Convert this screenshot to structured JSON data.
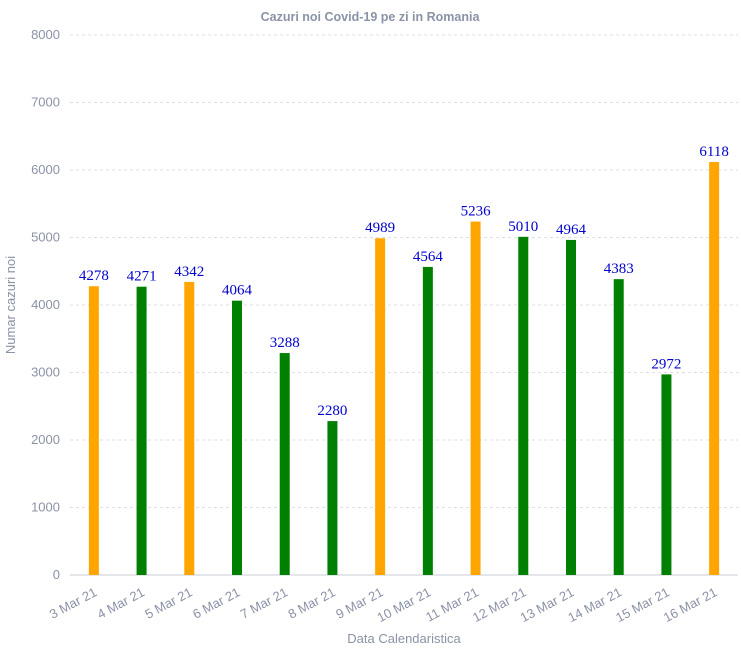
{
  "chart_data": {
    "type": "bar",
    "title": "Cazuri noi Covid-19 pe zi in Romania",
    "xlabel": "Data Calendaristica",
    "ylabel": "Numar cazuri noi",
    "ylim": [
      0,
      8000
    ],
    "yticks": [
      0,
      1000,
      2000,
      3000,
      4000,
      5000,
      6000,
      7000,
      8000
    ],
    "grid": true,
    "categories": [
      "3 Mar 21",
      "4 Mar 21",
      "5 Mar 21",
      "6 Mar 21",
      "7 Mar 21",
      "8 Mar 21",
      "9 Mar 21",
      "10 Mar 21",
      "11 Mar 21",
      "12 Mar 21",
      "13 Mar 21",
      "14 Mar 21",
      "15 Mar 21",
      "16 Mar 21"
    ],
    "values": [
      4278,
      4271,
      4342,
      4064,
      3288,
      2280,
      4989,
      4564,
      5236,
      5010,
      4964,
      4383,
      2972,
      6118
    ],
    "bar_colors": [
      "#ffa500",
      "#008000",
      "#ffa500",
      "#008000",
      "#008000",
      "#008000",
      "#ffa500",
      "#008000",
      "#ffa500",
      "#008000",
      "#008000",
      "#008000",
      "#008000",
      "#ffa500"
    ],
    "data_label_color": "#0000cc"
  }
}
